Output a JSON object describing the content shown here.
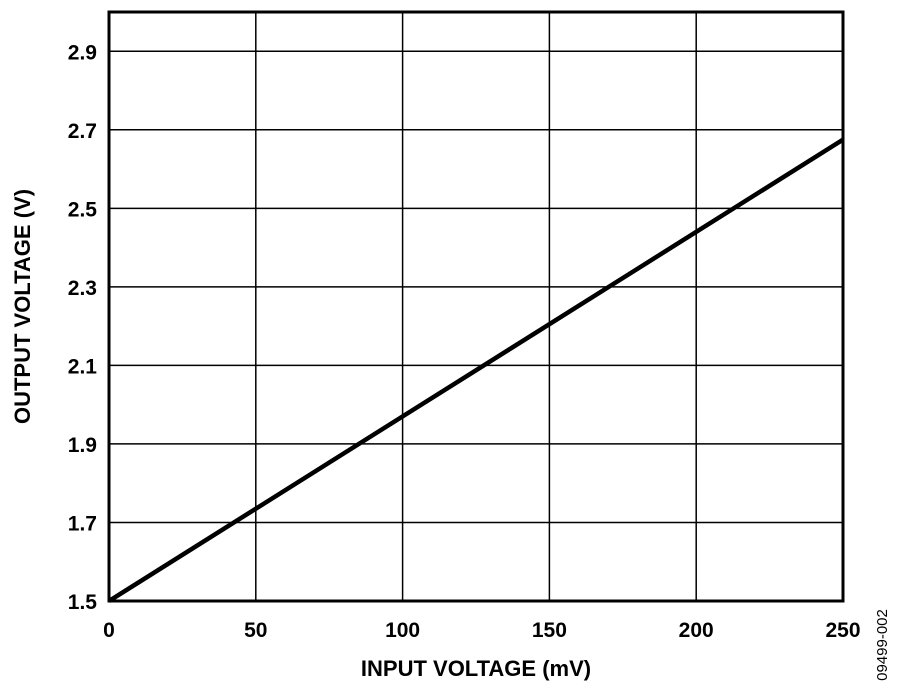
{
  "chart_data": {
    "type": "line",
    "title": "",
    "xlabel": "INPUT VOLTAGE (mV)",
    "ylabel": "OUTPUT VOLTAGE (V)",
    "xlim": [
      0,
      250
    ],
    "ylim": [
      1.5,
      3.0
    ],
    "xticks": [
      0,
      50,
      100,
      150,
      200,
      250
    ],
    "xtick_labels": [
      "0",
      "50",
      "100",
      "150",
      "200",
      "250"
    ],
    "yticks": [
      1.5,
      1.7,
      1.9,
      2.1,
      2.3,
      2.5,
      2.7,
      2.9
    ],
    "ytick_labels": [
      "1.5",
      "1.7",
      "1.9",
      "2.1",
      "2.3",
      "2.5",
      "2.7",
      "2.9"
    ],
    "grid": true,
    "series": [
      {
        "x": [
          0,
          250
        ],
        "y": [
          1.5,
          2.675
        ],
        "color": "#000000"
      }
    ]
  },
  "figure_id": "09499-002"
}
